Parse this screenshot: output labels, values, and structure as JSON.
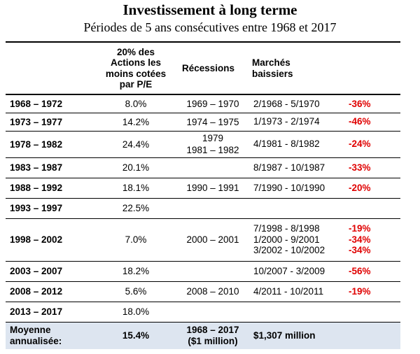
{
  "title": "Investissement à long terme",
  "subtitle": "Périodes de 5 ans consécutives entre 1968 et 2017",
  "headers": {
    "period": "",
    "pe": [
      "20% des",
      "Actions les",
      "moins cotées",
      "par P/E"
    ],
    "recessions": "Récessions",
    "markets": [
      "Marchés",
      "baissiers"
    ]
  },
  "rows": [
    {
      "period": "1968 – 1972",
      "pe": "8.0%",
      "recessions": [
        "1969 – 1970"
      ],
      "markets": [
        "2/1968 - 5/1970"
      ],
      "pct": [
        "-36%"
      ]
    },
    {
      "period": "1973 – 1977",
      "pe": "14.2%",
      "recessions": [
        "1974 – 1975"
      ],
      "markets": [
        "1/1973 - 2/1974"
      ],
      "pct": [
        "-46%"
      ]
    },
    {
      "period": "1978 – 1982",
      "pe": "24.4%",
      "recessions": [
        "1979",
        "1981 – 1982"
      ],
      "markets": [
        "4/1981 - 8/1982"
      ],
      "pct": [
        "-24%"
      ]
    },
    {
      "period": "1983 – 1987",
      "pe": "20.1%",
      "recessions": [],
      "markets": [
        "8/1987 - 10/1987"
      ],
      "pct": [
        "-33%"
      ]
    },
    {
      "period": "1988 – 1992",
      "pe": "18.1%",
      "recessions": [
        "1990 – 1991"
      ],
      "markets": [
        "7/1990 - 10/1990"
      ],
      "pct": [
        "-20%"
      ]
    },
    {
      "period": "1993 – 1997",
      "pe": "22.5%",
      "recessions": [],
      "markets": [],
      "pct": []
    },
    {
      "period": "1998 – 2002",
      "pe": "7.0%",
      "recessions": [
        "2000 – 2001"
      ],
      "markets": [
        "7/1998 - 8/1998",
        "1/2000 - 9/2001",
        "3/2002 - 10/2002"
      ],
      "pct": [
        "-19%",
        "-34%",
        "-34%"
      ]
    },
    {
      "period": "2003 – 2007",
      "pe": "18.2%",
      "recessions": [],
      "markets": [
        "10/2007 - 3/2009"
      ],
      "pct": [
        "-56%"
      ]
    },
    {
      "period": "2008 – 2012",
      "pe": "5.6%",
      "recessions": [
        "2008 – 2010"
      ],
      "markets": [
        "4/2011 - 10/2011"
      ],
      "pct": [
        "-19%"
      ]
    },
    {
      "period": "2013 – 2017",
      "pe": "18.0%",
      "recessions": [],
      "markets": [],
      "pct": []
    }
  ],
  "footer": {
    "label": [
      "Moyenne",
      "annualisée:"
    ],
    "pe": "15.4%",
    "recessions": [
      "1968 – 2017",
      "($1 million)"
    ],
    "markets": "$1,307 million"
  }
}
